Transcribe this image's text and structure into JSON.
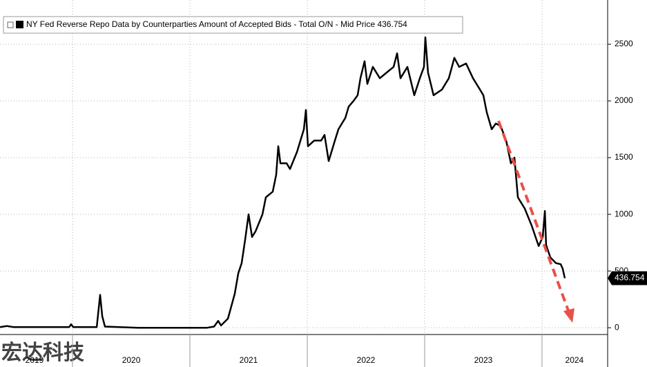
{
  "chart_data": {
    "type": "line",
    "title": "NY Fed Reverse Repo Data by Counterparties Amount of Accepted Bids - Total O/N - Mid Price 436.754",
    "watermark": "宏达科技",
    "x": [
      2019.382,
      2019.441,
      2019.5,
      2019.971,
      2019.988,
      2020.006,
      2020.206,
      2020.235,
      2020.253,
      2020.276,
      2020.559,
      2021.147,
      2021.206,
      2021.241,
      2021.265,
      2021.324,
      2021.382,
      2021.412,
      2021.441,
      2021.471,
      2021.5,
      2021.529,
      2021.559,
      2021.618,
      2021.647,
      2021.706,
      2021.735,
      2021.753,
      2021.771,
      2021.824,
      2021.853,
      2021.912,
      2021.971,
      2021.988,
      2022.006,
      2022.059,
      2022.118,
      2022.147,
      2022.182,
      2022.235,
      2022.265,
      2022.324,
      2022.353,
      2022.394,
      2022.429,
      2022.453,
      2022.488,
      2022.512,
      2022.559,
      2022.618,
      2022.676,
      2022.735,
      2022.765,
      2022.794,
      2022.853,
      2022.912,
      2022.959,
      2022.994,
      2023.006,
      2023.029,
      2023.076,
      2023.147,
      2023.206,
      2023.253,
      2023.294,
      2023.353,
      2023.412,
      2023.471,
      2023.5,
      2023.529,
      2023.571,
      2023.606,
      2023.647,
      2023.694,
      2023.735,
      2023.765,
      2023.794,
      2023.853,
      2023.912,
      2023.971,
      2024.006,
      2024.024,
      2024.035,
      2024.071,
      2024.118,
      2024.159,
      2024.176,
      2024.194
    ],
    "series": [
      {
        "name": "Total O/N",
        "color": "#000000",
        "values": [
          5,
          15,
          5,
          5,
          30,
          5,
          5,
          290,
          100,
          10,
          0,
          0,
          10,
          60,
          20,
          80,
          300,
          480,
          570,
          780,
          1000,
          800,
          850,
          1000,
          1150,
          1200,
          1350,
          1600,
          1450,
          1450,
          1400,
          1550,
          1750,
          1920,
          1600,
          1650,
          1650,
          1700,
          1470,
          1650,
          1750,
          1850,
          1950,
          2000,
          2050,
          2200,
          2350,
          2150,
          2300,
          2200,
          2250,
          2300,
          2420,
          2200,
          2300,
          2050,
          2200,
          2300,
          2560,
          2250,
          2050,
          2100,
          2200,
          2380,
          2300,
          2330,
          2200,
          2100,
          2050,
          1900,
          1750,
          1800,
          1780,
          1650,
          1450,
          1500,
          1150,
          1050,
          900,
          720,
          800,
          1030,
          730,
          620,
          570,
          560,
          520,
          436.754
        ]
      }
    ],
    "xlim": [
      2019.382,
      2024.559
    ],
    "ylim": [
      -60,
      2890
    ],
    "yticks": [
      0,
      500,
      1000,
      1500,
      2000,
      2500
    ],
    "xticks": [
      {
        "value": 2019.676,
        "label": "2019"
      },
      {
        "value": 2020.5,
        "label": "2020"
      },
      {
        "value": 2021.5,
        "label": "2021"
      },
      {
        "value": 2022.5,
        "label": "2022"
      },
      {
        "value": 2023.5,
        "label": "2023"
      },
      {
        "value": 2024.276,
        "label": "2024"
      }
    ],
    "xgrid": [
      2020,
      2021,
      2022,
      2023,
      2024
    ],
    "grid": true
  }
}
